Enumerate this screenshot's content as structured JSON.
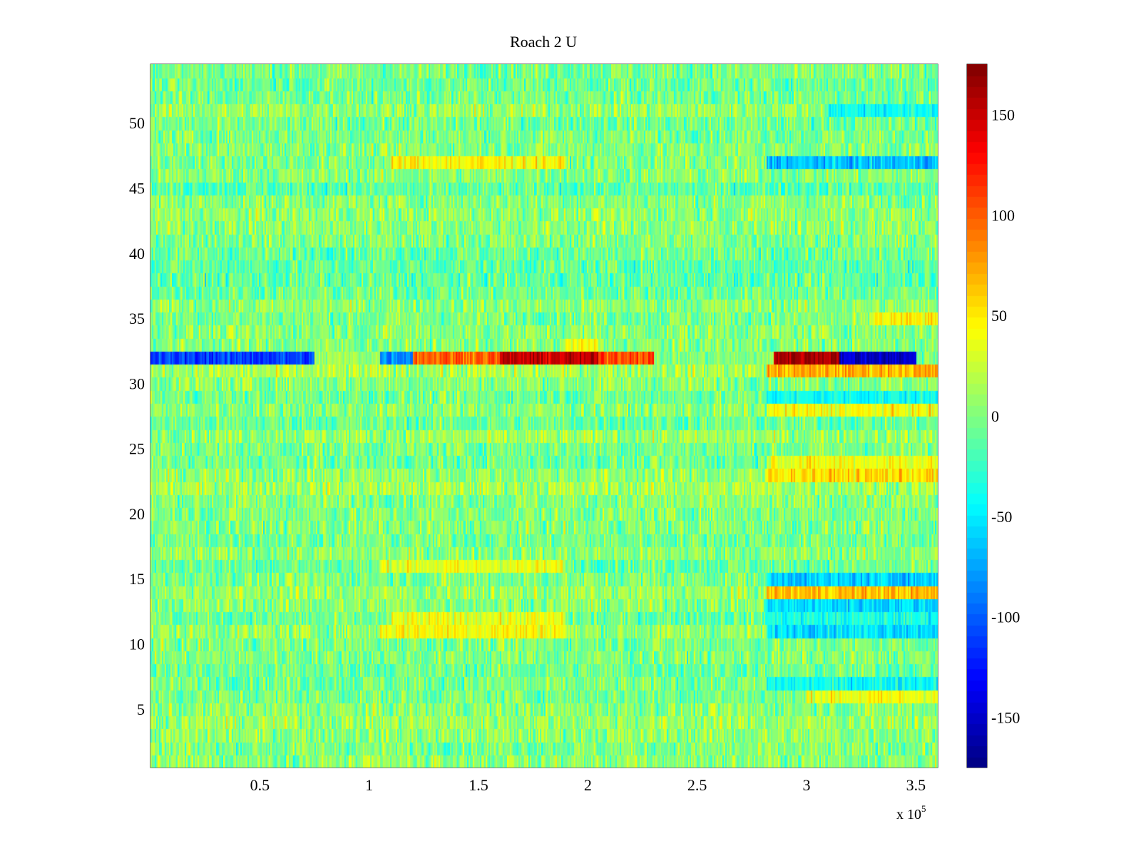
{
  "chart_data": {
    "type": "heatmap",
    "title": "Roach 2 U",
    "xlabel": "",
    "ylabel": "",
    "x_multiplier": "x 10",
    "x_multiplier_exp": "5",
    "xlim": [
      0,
      360000
    ],
    "ylim": [
      0.5,
      54.5
    ],
    "x_ticks": [
      {
        "value": 0.5,
        "label": "0.5"
      },
      {
        "value": 1,
        "label": "1"
      },
      {
        "value": 1.5,
        "label": "1.5"
      },
      {
        "value": 2,
        "label": "2"
      },
      {
        "value": 2.5,
        "label": "2.5"
      },
      {
        "value": 3,
        "label": "3"
      },
      {
        "value": 3.5,
        "label": "3.5"
      }
    ],
    "y_ticks": [
      {
        "value": 5,
        "label": "5"
      },
      {
        "value": 10,
        "label": "10"
      },
      {
        "value": 15,
        "label": "15"
      },
      {
        "value": 20,
        "label": "20"
      },
      {
        "value": 25,
        "label": "25"
      },
      {
        "value": 30,
        "label": "30"
      },
      {
        "value": 35,
        "label": "35"
      },
      {
        "value": 40,
        "label": "40"
      },
      {
        "value": 45,
        "label": "45"
      },
      {
        "value": 50,
        "label": "50"
      }
    ],
    "colorbar": {
      "colormap": "jet",
      "clim": [
        -175,
        175
      ],
      "ticks": [
        {
          "value": 150,
          "label": "150"
        },
        {
          "value": 100,
          "label": "100"
        },
        {
          "value": 50,
          "label": "50"
        },
        {
          "value": 0,
          "label": "0"
        },
        {
          "value": -50,
          "label": "-50"
        },
        {
          "value": -100,
          "label": "-100"
        },
        {
          "value": -150,
          "label": "-150"
        }
      ]
    },
    "rows": 54,
    "background_mean": 0,
    "background_noise": 30,
    "features": [
      {
        "row": 32,
        "x_range": [
          0,
          75000
        ],
        "mean": -110
      },
      {
        "row": 32,
        "x_range": [
          75000,
          105000
        ],
        "mean": 10
      },
      {
        "row": 32,
        "x_range": [
          105000,
          120000
        ],
        "mean": -80
      },
      {
        "row": 32,
        "x_range": [
          120000,
          160000
        ],
        "mean": 100
      },
      {
        "row": 32,
        "x_range": [
          160000,
          205000
        ],
        "mean": 150
      },
      {
        "row": 32,
        "x_range": [
          205000,
          230000
        ],
        "mean": 110
      },
      {
        "row": 32,
        "x_range": [
          230000,
          282000
        ],
        "mean": 0
      },
      {
        "row": 32,
        "x_range": [
          285000,
          315000
        ],
        "mean": 165
      },
      {
        "row": 32,
        "x_range": [
          315000,
          350000
        ],
        "mean": -150
      },
      {
        "row": 31,
        "x_range": [
          282000,
          360000
        ],
        "mean": 70
      },
      {
        "row": 47,
        "x_range": [
          282000,
          360000
        ],
        "mean": -65
      },
      {
        "row": 47,
        "x_range": [
          110000,
          190000
        ],
        "mean": 45
      },
      {
        "row": 23,
        "x_range": [
          282000,
          360000
        ],
        "mean": 55
      },
      {
        "row": 24,
        "x_range": [
          282000,
          360000
        ],
        "mean": 40
      },
      {
        "row": 14,
        "x_range": [
          282000,
          360000
        ],
        "mean": 65
      },
      {
        "row": 15,
        "x_range": [
          282000,
          360000
        ],
        "mean": -60
      },
      {
        "row": 13,
        "x_range": [
          282000,
          360000
        ],
        "mean": -55
      },
      {
        "row": 11,
        "x_range": [
          282000,
          360000
        ],
        "mean": -50
      },
      {
        "row": 12,
        "x_range": [
          282000,
          360000
        ],
        "mean": -35
      },
      {
        "row": 11,
        "x_range": [
          105000,
          190000
        ],
        "mean": 45
      },
      {
        "row": 12,
        "x_range": [
          110000,
          190000
        ],
        "mean": 35
      },
      {
        "row": 28,
        "x_range": [
          282000,
          360000
        ],
        "mean": 40
      },
      {
        "row": 29,
        "x_range": [
          282000,
          360000
        ],
        "mean": -40
      },
      {
        "row": 6,
        "x_range": [
          300000,
          360000
        ],
        "mean": 40
      },
      {
        "row": 7,
        "x_range": [
          282000,
          360000
        ],
        "mean": -40
      },
      {
        "row": 35,
        "x_range": [
          330000,
          360000
        ],
        "mean": 45
      },
      {
        "row": 51,
        "x_range": [
          310000,
          360000
        ],
        "mean": -40
      },
      {
        "row": 16,
        "x_range": [
          105000,
          190000
        ],
        "mean": 35
      },
      {
        "row": 33,
        "x_range": [
          190000,
          205000
        ],
        "mean": 40
      }
    ]
  }
}
